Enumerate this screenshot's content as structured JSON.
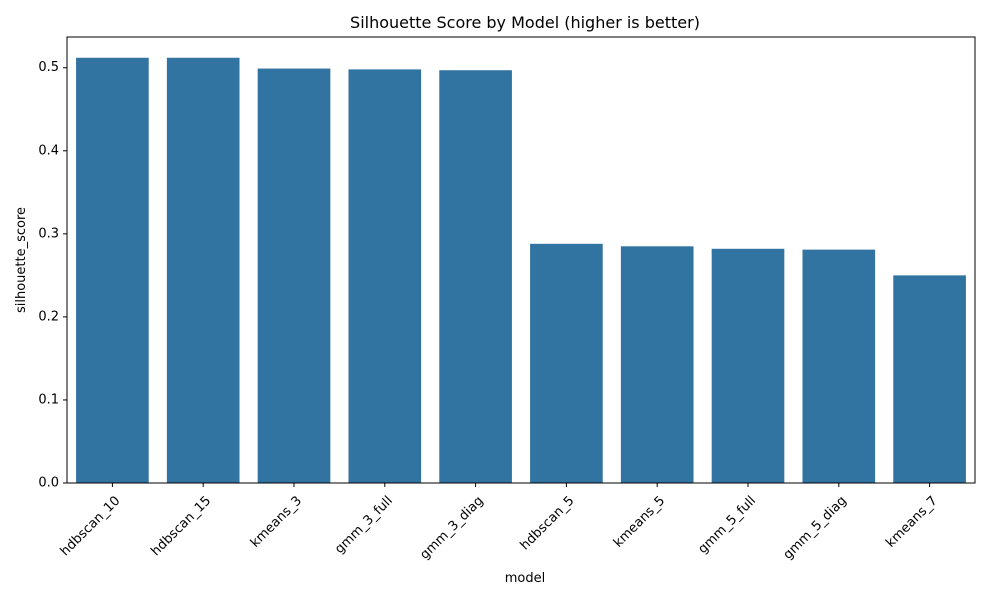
{
  "chart_data": {
    "type": "bar",
    "title": "Silhouette Score by Model (higher is better)",
    "xlabel": "model",
    "ylabel": "silhouette_score",
    "categories": [
      "hdbscan_10",
      "hdbscan_15",
      "kmeans_3",
      "gmm_3_full",
      "gmm_3_diag",
      "hdbscan_5",
      "kmeans_5",
      "gmm_5_full",
      "gmm_5_diag",
      "kmeans_7"
    ],
    "values": [
      0.512,
      0.512,
      0.499,
      0.498,
      0.497,
      0.288,
      0.285,
      0.282,
      0.281,
      0.25
    ],
    "ylim": [
      0,
      0.537
    ],
    "yticks": [
      0.0,
      0.1,
      0.2,
      0.3,
      0.4,
      0.5
    ],
    "ytick_labels": [
      "0.0",
      "0.1",
      "0.2",
      "0.3",
      "0.4",
      "0.5"
    ],
    "bar_color": "#3274a1",
    "grid": false,
    "legend": false
  }
}
